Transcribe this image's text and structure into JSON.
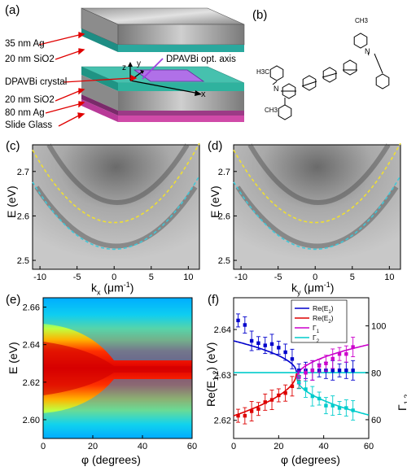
{
  "panel_labels": {
    "a": "(a)",
    "b": "(b)",
    "c": "(c)",
    "d": "(d)",
    "e": "(e)",
    "f": "(f)"
  },
  "structure": {
    "layers": [
      "35 nm Ag",
      "20 nm SiO2",
      "DPAVBi crystal",
      "20 nm SiO2",
      "80 nm Ag",
      "Slide Glass"
    ],
    "axes": {
      "z": "z",
      "y": "y",
      "x": "x"
    },
    "optic_axis_label": "DPAVBi opt. axis"
  },
  "molecule": {
    "groups": [
      "CH3",
      "H3C",
      "CH3"
    ],
    "atoms": [
      "N",
      "N"
    ]
  },
  "chart_data": [
    {
      "panel": "(c)",
      "type": "heatmap",
      "xlabel": "kx (μm⁻¹)",
      "ylabel": "E (eV)",
      "xticks": [
        -10,
        -5,
        0,
        5,
        10
      ],
      "yticks": [
        2.5,
        2.6,
        2.7
      ],
      "xlim": [
        -11,
        11.5
      ],
      "ylim": [
        2.48,
        2.76
      ],
      "series": [
        {
          "color": "#f0e030",
          "x": [
            -10,
            -5,
            0,
            5,
            10
          ],
          "y": [
            2.72,
            2.615,
            2.585,
            2.615,
            2.72
          ]
        },
        {
          "color": "#40c8d8",
          "x": [
            -10,
            -5,
            0,
            5,
            10
          ],
          "y": [
            2.65,
            2.57,
            2.525,
            2.57,
            2.65
          ]
        }
      ]
    },
    {
      "panel": "(d)",
      "type": "heatmap",
      "xlabel": "ky (μm⁻¹)",
      "ylabel": "E (eV)",
      "xticks": [
        -10,
        -5,
        0,
        5,
        10
      ],
      "yticks": [
        2.5,
        2.6,
        2.7
      ],
      "xlim": [
        -11,
        11.5
      ],
      "ylim": [
        2.48,
        2.76
      ],
      "series": [
        {
          "color": "#f0e030",
          "x": [
            -10,
            -5,
            0,
            5,
            10
          ],
          "y": [
            2.72,
            2.615,
            2.585,
            2.615,
            2.72
          ]
        },
        {
          "color": "#40c8d8",
          "x": [
            -10,
            -5,
            0,
            5,
            10
          ],
          "y": [
            2.65,
            2.57,
            2.525,
            2.57,
            2.65
          ]
        }
      ]
    },
    {
      "panel": "(e)",
      "type": "heatmap",
      "xlabel": "φ (degrees)",
      "ylabel": "E (eV)",
      "xticks": [
        0,
        20,
        40,
        60
      ],
      "yticks": [
        2.6,
        2.62,
        2.64,
        2.66
      ],
      "xlim": [
        0,
        60
      ],
      "ylim": [
        2.59,
        2.665
      ],
      "colormap": "jet",
      "ridges": [
        {
          "phi": [
            0,
            20,
            30,
            40,
            60
          ],
          "E": [
            2.642,
            2.637,
            2.632,
            2.632,
            2.632
          ]
        },
        {
          "phi": [
            0,
            20,
            30,
            40,
            60
          ],
          "E": [
            2.619,
            2.624,
            2.629,
            2.629,
            2.629
          ]
        }
      ]
    },
    {
      "panel": "(f)",
      "type": "scatter",
      "xlabel": "φ (degrees)",
      "ylabel": "Re(E1,2) (eV)",
      "ylabel_right": "Γ1,2 (meV)",
      "xticks": [
        0,
        20,
        40,
        60
      ],
      "yticks": [
        2.62,
        2.63,
        2.64
      ],
      "yticks_right": [
        60,
        80,
        100
      ],
      "xlim": [
        0,
        60
      ],
      "ylim": [
        2.616,
        2.647
      ],
      "ylim_right": [
        52,
        112
      ],
      "legend": [
        "Re(E1)",
        "Re(E2)",
        "Γ1",
        "Γ2"
      ],
      "series": [
        {
          "name": "Re(E1)",
          "color": "#0000cc",
          "x": [
            2,
            5,
            8,
            11,
            14,
            17,
            20,
            23,
            26,
            29,
            32,
            35,
            38,
            41,
            44,
            47,
            50,
            53
          ],
          "y": [
            2.642,
            2.641,
            2.6375,
            2.637,
            2.6365,
            2.6368,
            2.636,
            2.635,
            2.6335,
            2.631,
            2.631,
            2.631,
            2.631,
            2.631,
            2.631,
            2.631,
            2.631,
            2.631
          ]
        },
        {
          "name": "Re(E2)",
          "color": "#dd0000",
          "x": [
            2,
            5,
            8,
            11,
            14,
            17,
            20,
            23,
            26,
            29
          ],
          "y": [
            2.621,
            2.621,
            2.622,
            2.6225,
            2.624,
            2.6245,
            2.6255,
            2.626,
            2.6275,
            2.6285
          ]
        },
        {
          "name": "Γ1",
          "color": "#cc00cc",
          "x": [
            29,
            32,
            35,
            38,
            41,
            44,
            47,
            50,
            53
          ],
          "y": [
            78,
            80,
            81,
            83,
            84,
            86,
            88,
            88,
            91
          ]
        },
        {
          "name": "Γ2",
          "color": "#00cccc",
          "x": [
            29,
            32,
            35,
            38,
            41,
            44,
            47,
            50,
            53
          ],
          "y": [
            76,
            73,
            70,
            69,
            66,
            66,
            65,
            65,
            64
          ]
        }
      ]
    }
  ]
}
